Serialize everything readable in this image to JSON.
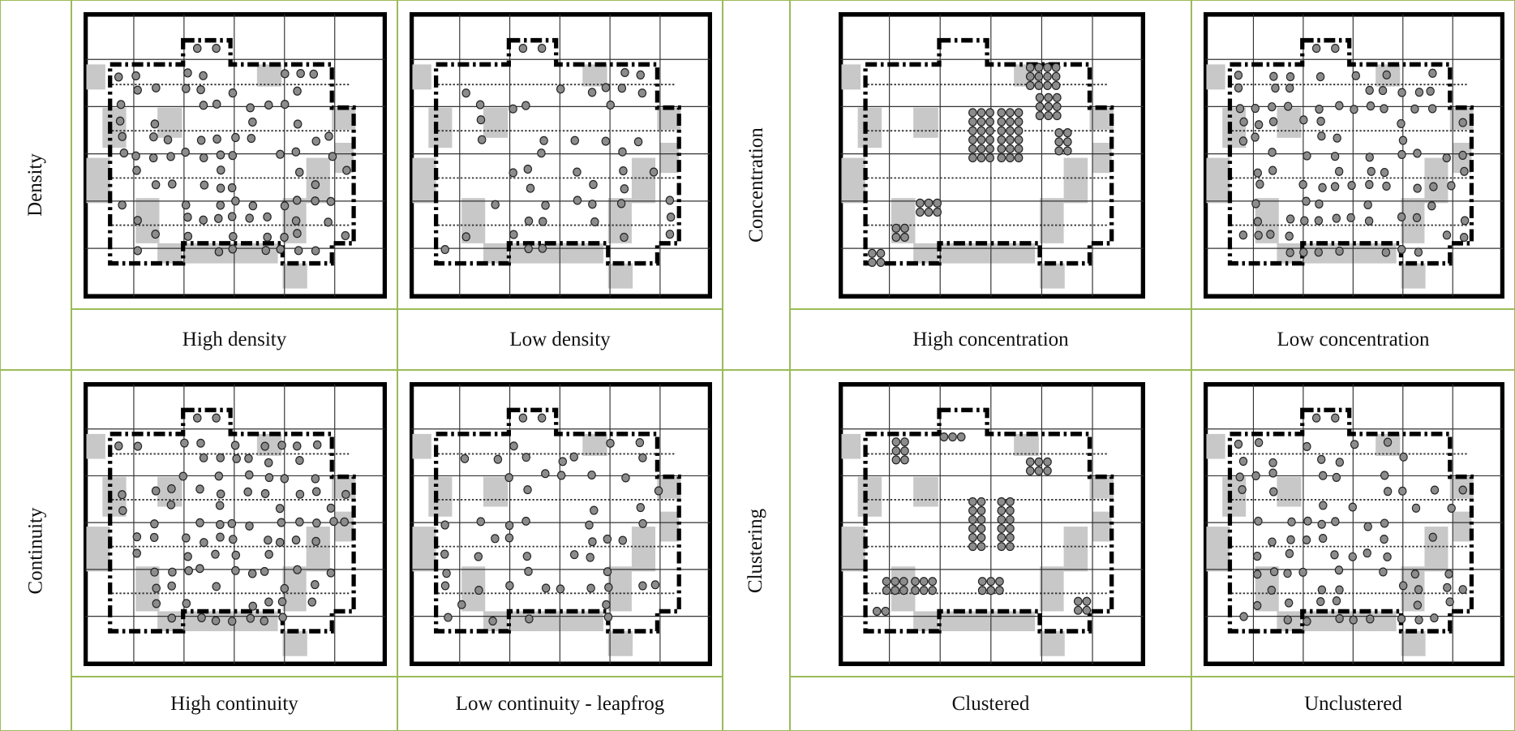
{
  "rows": [
    {
      "label": "Density",
      "captions": [
        "High density",
        "Low density"
      ]
    },
    {
      "label": "Concentration",
      "captions": [
        "High concentration",
        "Low concentration"
      ]
    },
    {
      "label": "Continuity",
      "captions": [
        "High continuity",
        "Low continuity - leapfrog"
      ]
    },
    {
      "label": "Clustering",
      "captions": [
        "Clustered",
        "Unclustered"
      ]
    }
  ]
}
